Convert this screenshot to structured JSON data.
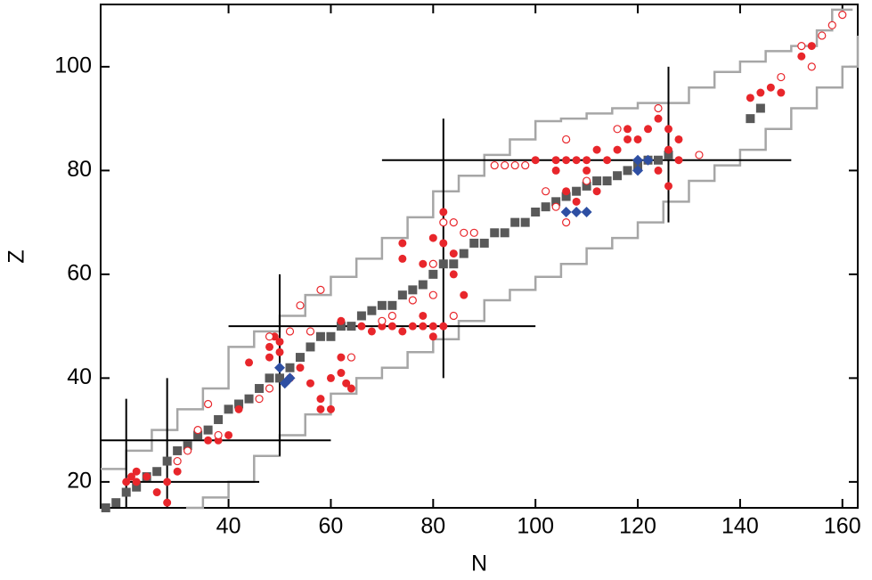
{
  "chart_data": {
    "type": "scatter",
    "xlabel": "N",
    "ylabel": "Z",
    "xlim": [
      15,
      163
    ],
    "ylim": [
      15,
      112
    ],
    "xticks": [
      40,
      60,
      80,
      100,
      120,
      140,
      160
    ],
    "yticks": [
      20,
      40,
      60,
      80,
      100
    ],
    "series": [
      {
        "marker": "step",
        "color": "#a6a6a6",
        "x": [
          15,
          20,
          25,
          30,
          35,
          40,
          45,
          50,
          55,
          60,
          65,
          70,
          75,
          80,
          85,
          90,
          95,
          100,
          105,
          110,
          115,
          120,
          125,
          130,
          135,
          140,
          145,
          150,
          155,
          158,
          162
        ],
        "y": [
          22.5,
          26,
          30,
          34,
          38,
          46,
          49,
          52,
          56,
          59.5,
          63,
          67,
          71,
          76,
          79,
          83,
          86,
          89.5,
          90,
          91,
          92,
          93,
          93,
          96,
          99,
          101,
          103,
          104,
          107,
          111,
          111
        ]
      },
      {
        "marker": "step",
        "color": "#a6a6a6",
        "x": [
          31.7,
          35,
          40,
          45,
          50,
          55,
          60,
          65,
          70,
          75,
          80,
          85,
          90,
          95,
          100,
          105,
          110,
          115,
          120,
          125,
          130,
          135,
          140,
          145,
          150,
          155,
          160,
          163
        ],
        "y": [
          15,
          17,
          20,
          25,
          29,
          33,
          37,
          40,
          42,
          45,
          47.5,
          51,
          55,
          57,
          59.5,
          62,
          65,
          67,
          70,
          74,
          78,
          81,
          84,
          88,
          92,
          96,
          100,
          106
        ]
      },
      {
        "marker": "line",
        "color": "#000000",
        "x": [
          20,
          20,
          null,
          28,
          28,
          null,
          50,
          50,
          null,
          82,
          82,
          null,
          126,
          126,
          null,
          20,
          46,
          null,
          15,
          60,
          null,
          40,
          100,
          null,
          70,
          150
        ],
        "y": [
          15,
          36,
          null,
          15,
          40,
          null,
          25,
          60,
          null,
          40,
          90,
          null,
          70,
          100,
          null,
          20,
          20,
          null,
          28,
          28,
          null,
          50,
          50,
          null,
          82,
          82
        ]
      },
      {
        "marker": "square",
        "color": "#595959",
        "x": [
          16,
          18,
          20,
          22,
          24,
          26,
          28,
          30,
          32,
          34,
          36,
          38,
          40,
          42,
          44,
          46,
          48,
          50,
          52,
          54,
          56,
          58,
          60,
          62,
          64,
          66,
          68,
          70,
          72,
          74,
          76,
          78,
          80,
          82,
          84,
          86,
          88,
          90,
          92,
          94,
          96,
          98,
          100,
          102,
          104,
          106,
          108,
          110,
          112,
          114,
          116,
          118,
          120,
          122,
          124,
          126,
          142,
          144
        ],
        "y": [
          15,
          16,
          18,
          19,
          21,
          22,
          24,
          26,
          27,
          29,
          30,
          32,
          34,
          35,
          36,
          38,
          40,
          40,
          42,
          44,
          46,
          48,
          48,
          50,
          50,
          52,
          53,
          54,
          54,
          56,
          57,
          58,
          60,
          62,
          62,
          64,
          66,
          66,
          68,
          68,
          70,
          70,
          72,
          73,
          74,
          75,
          76,
          77,
          78,
          78,
          79,
          80,
          81,
          82,
          82,
          83,
          90,
          92
        ]
      },
      {
        "marker": "circle",
        "color": "#e8262b",
        "x": [
          20,
          21,
          22,
          22,
          24,
          28,
          28,
          26,
          30,
          36,
          38,
          40,
          42,
          44,
          48,
          48,
          49,
          50,
          50,
          52,
          54,
          56,
          58,
          58,
          60,
          60,
          62,
          62,
          63,
          64,
          62,
          66,
          68,
          70,
          72,
          74,
          76,
          78,
          80,
          82,
          74,
          74,
          78,
          78,
          80,
          80,
          82,
          82,
          84,
          84,
          86,
          100,
          104,
          106,
          108,
          110,
          112,
          114,
          116,
          118,
          120,
          122,
          124,
          126,
          126,
          128,
          126,
          124,
          110,
          106,
          104,
          144,
          146,
          148,
          142,
          152,
          154,
          108,
          112,
          118,
          128
        ],
        "y": [
          20,
          21,
          22,
          20,
          21,
          16,
          20,
          18,
          22,
          28,
          28,
          29,
          34,
          43,
          44,
          46,
          48,
          47,
          45,
          40,
          42,
          39,
          36,
          34,
          34,
          40,
          41,
          44,
          39,
          38,
          51,
          50,
          49,
          50,
          50,
          49,
          50,
          50,
          50,
          50,
          63,
          66,
          62,
          52,
          67,
          48,
          72,
          66,
          60,
          64,
          56,
          82,
          82,
          82,
          82,
          82,
          84,
          82,
          84,
          86,
          86,
          88,
          90,
          88,
          84,
          82,
          77,
          80,
          80,
          76,
          80,
          95,
          96,
          95,
          94,
          102,
          104,
          74,
          76,
          88,
          86
        ]
      },
      {
        "marker": "open-circle",
        "color": "#e8262b",
        "x": [
          30,
          32,
          34,
          36,
          38,
          46,
          48,
          48,
          52,
          56,
          58,
          54,
          64,
          70,
          72,
          76,
          80,
          82,
          84,
          86,
          88,
          84,
          80,
          92,
          94,
          96,
          98,
          102,
          104,
          106,
          106,
          110,
          116,
          124,
          132,
          148,
          152,
          154,
          156,
          158,
          160
        ],
        "y": [
          24,
          26,
          30,
          35,
          29,
          36,
          38,
          48,
          49,
          49,
          57,
          54,
          44,
          51,
          52,
          55,
          62,
          70,
          70,
          68,
          68,
          52,
          56,
          81,
          81,
          81,
          81,
          76,
          73,
          70,
          86,
          78,
          88,
          92,
          83,
          98,
          104,
          100,
          106,
          108,
          110
        ]
      },
      {
        "marker": "diamond",
        "color": "#2e4fa3",
        "x": [
          50,
          51,
          52,
          106,
          108,
          110,
          120,
          122,
          120
        ],
        "y": [
          42,
          39,
          40,
          72,
          72,
          72,
          82,
          82,
          80
        ]
      }
    ]
  }
}
